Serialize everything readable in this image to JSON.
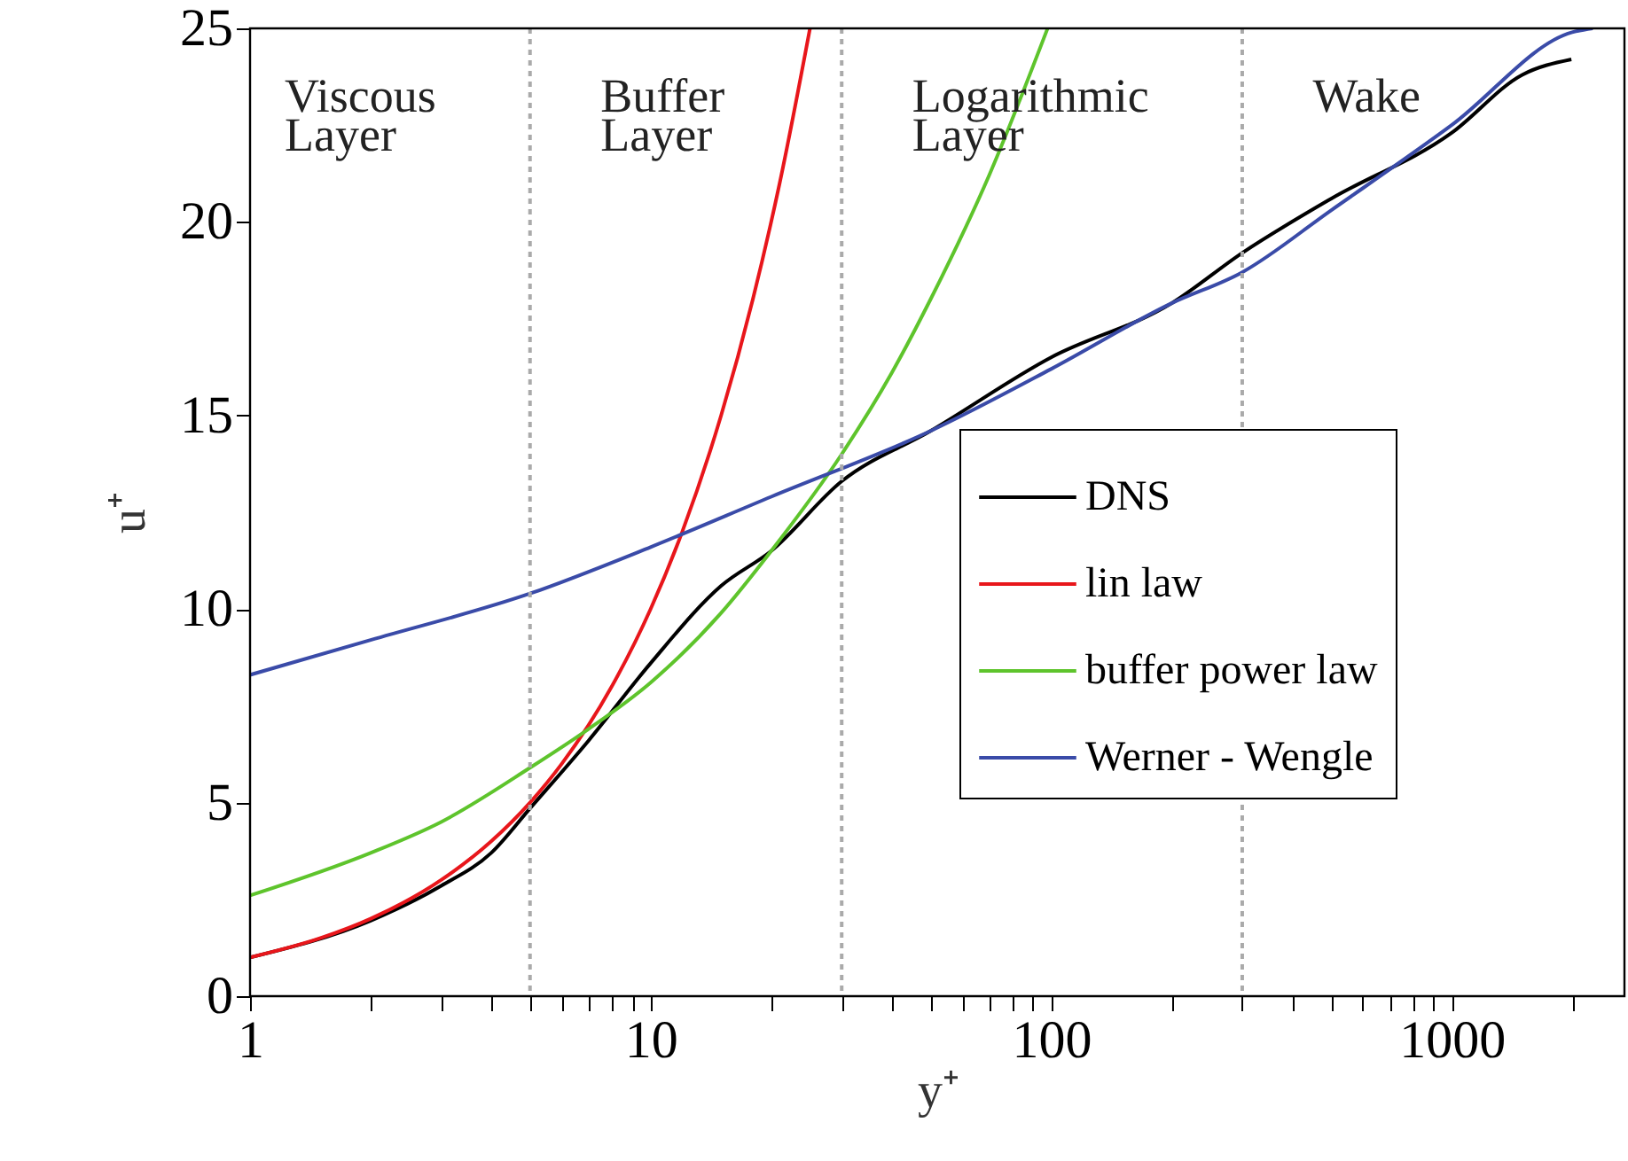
{
  "chart_data": {
    "type": "line",
    "xlabel": "y⁺",
    "ylabel": "u⁺",
    "log": "x",
    "xlim": [
      1,
      2700
    ],
    "ylim": [
      0,
      25
    ],
    "xticks": [
      1,
      {
        "value": 2,
        "label": null
      },
      {
        "value": 3,
        "label": null
      },
      {
        "value": 4,
        "label": null
      },
      {
        "value": 5,
        "label": null
      },
      {
        "value": 6,
        "label": null
      },
      {
        "value": 7,
        "label": null
      },
      {
        "value": 8,
        "label": null
      },
      {
        "value": 9,
        "label": null
      },
      10,
      {
        "value": 20,
        "label": null
      },
      {
        "value": 30,
        "label": null
      },
      {
        "value": 40,
        "label": null
      },
      {
        "value": 50,
        "label": null
      },
      {
        "value": 60,
        "label": null
      },
      {
        "value": 70,
        "label": null
      },
      {
        "value": 80,
        "label": null
      },
      {
        "value": 90,
        "label": null
      },
      100,
      {
        "value": 200,
        "label": null
      },
      {
        "value": 300,
        "label": null
      },
      {
        "value": 400,
        "label": null
      },
      {
        "value": 500,
        "label": null
      },
      {
        "value": 600,
        "label": null
      },
      {
        "value": 700,
        "label": null
      },
      {
        "value": 800,
        "label": null
      },
      {
        "value": 900,
        "label": null
      },
      1000,
      {
        "value": 2000,
        "label": null
      }
    ],
    "yticks": [
      0,
      5,
      10,
      15,
      20,
      25
    ],
    "grid": false,
    "legend": "right",
    "line_style": "solid",
    "marker": "none",
    "series": [
      {
        "name": "DNS",
        "color": "#000000",
        "x": [
          1,
          2,
          3,
          4,
          5,
          7,
          10,
          15,
          20,
          30,
          50,
          100,
          200,
          300,
          500,
          1000,
          1500,
          1990
        ],
        "values": [
          1.0,
          1.95,
          2.85,
          3.7,
          4.85,
          6.6,
          8.6,
          10.6,
          11.5,
          13.3,
          14.6,
          16.5,
          17.9,
          19.2,
          20.6,
          22.3,
          23.8,
          24.2
        ]
      },
      {
        "name": "lin law",
        "color": "#e8161b",
        "x": [
          1,
          1.5,
          2,
          3,
          4,
          5,
          6,
          8,
          10,
          12,
          15,
          18,
          21,
          25
        ],
        "values": [
          1,
          1.5,
          2,
          3,
          4,
          5,
          6,
          8,
          10,
          12,
          15,
          18,
          21,
          25
        ]
      },
      {
        "name": "buffer power law",
        "color": "#5ec42c",
        "x": [
          1,
          2,
          3,
          5,
          7,
          10,
          15,
          20,
          30,
          40,
          50,
          70,
          98
        ],
        "values": [
          2.6,
          3.7,
          4.5,
          5.9,
          6.9,
          8.1,
          9.9,
          11.5,
          14.0,
          16.1,
          18.0,
          21.2,
          25.0
        ]
      },
      {
        "name": "Werner - Wengle",
        "color": "#3a4ba8",
        "x": [
          1,
          2,
          5,
          10,
          20,
          50,
          100,
          200,
          300,
          500,
          1000,
          2000,
          2250
        ],
        "values": [
          8.3,
          9.2,
          10.4,
          11.6,
          12.9,
          14.6,
          16.2,
          17.9,
          18.7,
          20.3,
          22.5,
          24.9,
          25.0
        ]
      }
    ],
    "ref_lines": [
      {
        "axis": "x",
        "value": 5,
        "color": "#aaaaaa",
        "line_style": "dotted"
      },
      {
        "axis": "x",
        "value": 30,
        "color": "#aaaaaa",
        "line_style": "dotted"
      },
      {
        "axis": "x",
        "value": 300,
        "color": "#aaaaaa",
        "line_style": "dotted"
      }
    ],
    "annotations": [
      "Viscous Layer",
      "Buffer Layer",
      "Logarithmic Layer",
      "Wake"
    ]
  }
}
